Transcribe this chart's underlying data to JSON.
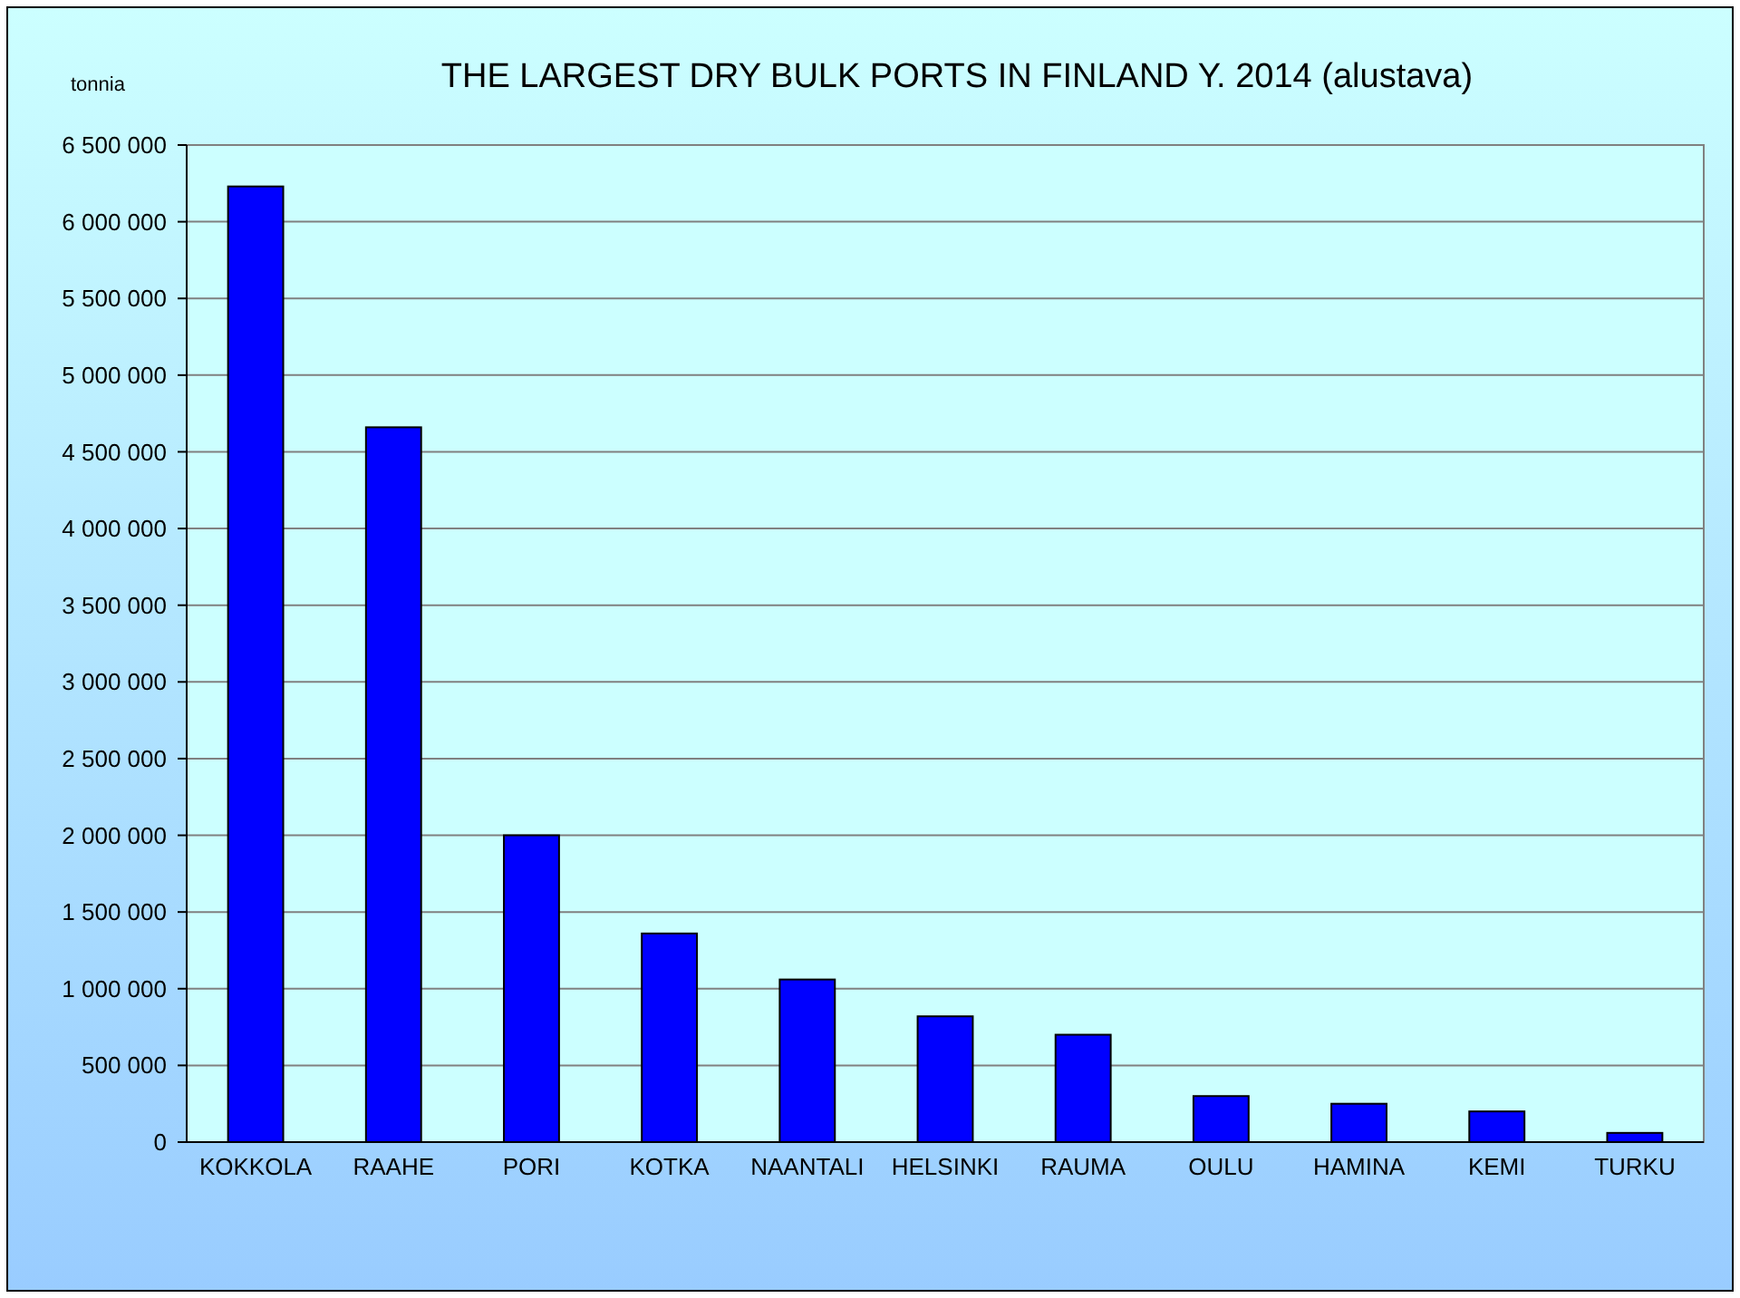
{
  "chart_data": {
    "type": "bar",
    "title": "THE LARGEST DRY BULK PORTS IN FINLAND Y. 2014 (alustava)",
    "ylabel": "tonnia",
    "categories": [
      "KOKKOLA",
      "RAAHE",
      "PORI",
      "KOTKA",
      "NAANTALI",
      "HELSINKI",
      "RAUMA",
      "OULU",
      "HAMINA",
      "KEMI",
      "TURKU"
    ],
    "values": [
      6230000,
      4660000,
      2000000,
      1360000,
      1060000,
      820000,
      700000,
      300000,
      250000,
      200000,
      60000
    ],
    "color": "#0000ff",
    "ylim": [
      0,
      6500000
    ],
    "yticks": [
      {
        "value": 0,
        "label": "0"
      },
      {
        "value": 500000,
        "label": "500 000"
      },
      {
        "value": 1000000,
        "label": "1 000 000"
      },
      {
        "value": 1500000,
        "label": "1 500 000"
      },
      {
        "value": 2000000,
        "label": "2 000 000"
      },
      {
        "value": 2500000,
        "label": "2 500 000"
      },
      {
        "value": 3000000,
        "label": "3 000 000"
      },
      {
        "value": 3500000,
        "label": "3 500 000"
      },
      {
        "value": 4000000,
        "label": "4 000 000"
      },
      {
        "value": 4500000,
        "label": "4 500 000"
      },
      {
        "value": 5000000,
        "label": "5 000 000"
      },
      {
        "value": 5500000,
        "label": "5 500 000"
      },
      {
        "value": 6000000,
        "label": "6 000 000"
      },
      {
        "value": 6500000,
        "label": "6 500 000"
      }
    ],
    "grid": "y"
  }
}
